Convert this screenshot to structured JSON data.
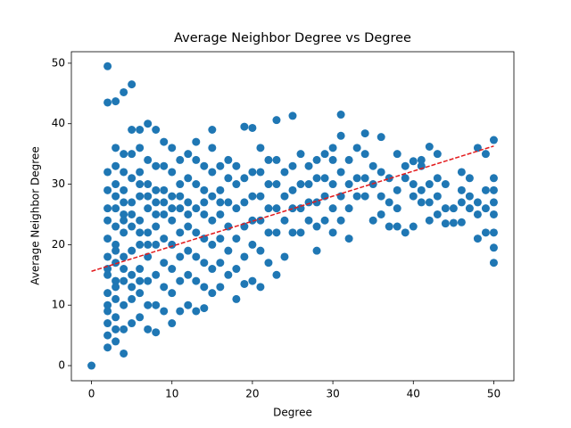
{
  "chart_data": {
    "type": "scatter",
    "title": "Average Neighbor Degree vs Degree",
    "x_label": "Degree",
    "y_label": "Average Neighbor Degree",
    "xlim": [
      -2.5,
      52.5
    ],
    "ylim": [
      -2.5,
      51.9
    ],
    "xticks": [
      0,
      10,
      20,
      30,
      40,
      50
    ],
    "yticks": [
      0,
      10,
      20,
      30,
      40,
      50
    ],
    "grid": false,
    "series": [
      {
        "type": "scatter",
        "color": "#1f77b4",
        "x": [
          0,
          2,
          2,
          2,
          2,
          2,
          2,
          2,
          2,
          2,
          2,
          2,
          2,
          2,
          2,
          2,
          2,
          3,
          3,
          3,
          3,
          3,
          3,
          3,
          3,
          3,
          3,
          3,
          3,
          3,
          3,
          3,
          3,
          4,
          4,
          4,
          4,
          4,
          4,
          4,
          4,
          4,
          4,
          4,
          4,
          4,
          4,
          5,
          5,
          5,
          5,
          5,
          5,
          5,
          5,
          5,
          5,
          5,
          5,
          6,
          6,
          6,
          6,
          6,
          6,
          6,
          6,
          6,
          6,
          6,
          6,
          7,
          7,
          7,
          7,
          7,
          7,
          7,
          7,
          7,
          7,
          7,
          8,
          8,
          8,
          8,
          8,
          8,
          8,
          8,
          8,
          8,
          9,
          9,
          9,
          9,
          9,
          9,
          9,
          9,
          9,
          10,
          10,
          10,
          10,
          10,
          10,
          10,
          10,
          10,
          11,
          11,
          11,
          11,
          11,
          11,
          11,
          11,
          12,
          12,
          12,
          12,
          12,
          12,
          12,
          12,
          13,
          13,
          13,
          13,
          13,
          13,
          13,
          13,
          14,
          14,
          14,
          14,
          14,
          14,
          14,
          14,
          15,
          15,
          15,
          15,
          15,
          15,
          15,
          15,
          16,
          16,
          16,
          16,
          16,
          16,
          16,
          17,
          17,
          17,
          17,
          17,
          17,
          18,
          18,
          18,
          18,
          18,
          18,
          19,
          19,
          19,
          19,
          19,
          19,
          20,
          20,
          20,
          20,
          20,
          20,
          21,
          21,
          21,
          21,
          21,
          21,
          22,
          22,
          22,
          22,
          22,
          23,
          23,
          23,
          23,
          23,
          23,
          24,
          24,
          24,
          24,
          25,
          25,
          25,
          25,
          25,
          26,
          26,
          26,
          26,
          27,
          27,
          27,
          27,
          28,
          28,
          28,
          28,
          28,
          29,
          29,
          29,
          29,
          30,
          30,
          30,
          30,
          30,
          31,
          31,
          31,
          31,
          31,
          32,
          32,
          32,
          32,
          33,
          33,
          33,
          34,
          34,
          34,
          34,
          35,
          35,
          35,
          36,
          36,
          36,
          36,
          37,
          37,
          37,
          38,
          38,
          38,
          38,
          39,
          39,
          39,
          40,
          40,
          40,
          40,
          41,
          41,
          41,
          41,
          42,
          42,
          42,
          42,
          43,
          43,
          43,
          43,
          44,
          44,
          44,
          45,
          45,
          46,
          46,
          46,
          46,
          47,
          47,
          47,
          48,
          48,
          48,
          48,
          49,
          49,
          49,
          49,
          50,
          50,
          50,
          50,
          50,
          50,
          50,
          50
        ],
        "values": [
          0,
          3,
          5,
          7,
          9,
          12,
          15,
          18,
          21,
          24,
          26,
          29,
          32,
          43.5,
          49.5,
          10,
          16,
          4,
          8,
          11,
          14,
          17,
          20,
          23,
          26,
          30,
          33,
          36,
          43.7,
          6,
          13,
          19,
          28,
          2,
          6,
          10,
          14,
          18,
          22,
          25,
          29,
          32,
          35,
          45.2,
          16,
          24,
          27,
          7,
          11,
          15,
          19,
          23,
          27,
          31,
          35,
          39,
          46.5,
          13,
          25,
          8,
          12,
          16,
          20,
          24,
          28,
          32,
          36,
          39,
          14,
          22,
          30,
          6,
          10,
          14,
          18,
          22,
          26,
          30,
          34,
          40,
          20,
          28,
          5.5,
          10,
          15,
          20,
          25,
          29,
          33,
          39,
          23,
          27,
          9,
          13,
          17,
          21,
          25,
          29,
          33,
          37,
          27,
          7,
          12,
          16,
          20,
          24,
          28,
          32,
          36,
          26,
          9,
          14,
          18,
          22,
          26,
          30,
          34,
          28,
          10,
          15,
          19,
          23,
          27,
          31,
          35,
          25,
          9,
          14,
          18,
          22,
          26,
          30,
          34,
          37,
          9.5,
          13,
          17,
          21,
          25,
          29,
          33,
          27,
          12,
          16,
          20,
          24,
          28,
          32,
          36,
          39,
          13,
          17,
          21,
          25,
          29,
          33,
          27,
          15,
          19,
          23,
          27,
          31,
          34,
          11,
          16,
          21,
          26,
          30,
          33,
          13.5,
          18,
          23,
          27,
          31,
          39.5,
          14,
          20,
          24,
          28,
          32,
          39.3,
          13,
          19,
          24,
          28,
          32,
          36,
          17,
          22,
          26,
          30,
          34,
          15,
          22,
          26,
          30,
          34,
          40.6,
          18,
          24,
          28,
          32,
          22,
          26,
          29,
          33,
          41.3,
          22,
          26,
          30,
          35,
          24,
          27,
          30,
          33,
          19,
          23,
          27,
          31,
          34,
          24,
          28,
          31,
          35,
          22,
          26,
          30,
          34,
          36,
          24,
          28,
          32,
          38,
          41.5,
          21,
          26,
          30,
          34,
          28,
          31,
          36,
          28,
          31,
          35,
          38.4,
          24,
          30,
          33,
          25,
          28,
          32,
          37.8,
          23,
          27,
          31,
          23,
          26,
          29,
          35,
          22,
          31,
          33,
          23,
          28,
          30,
          33.8,
          27,
          29,
          33,
          34,
          24,
          27,
          30,
          36.2,
          25,
          28,
          31,
          35,
          23.5,
          26,
          30,
          23.6,
          26,
          23.7,
          27,
          29,
          32,
          26,
          28,
          31,
          21,
          25,
          27,
          36,
          22,
          26,
          29,
          35,
          17,
          19.5,
          22,
          25,
          27,
          29,
          31,
          37.3
        ]
      },
      {
        "type": "line",
        "color": "#e31a1c",
        "dashed": true,
        "x": [
          0,
          50
        ],
        "values": [
          15.6,
          36.3
        ]
      }
    ]
  }
}
